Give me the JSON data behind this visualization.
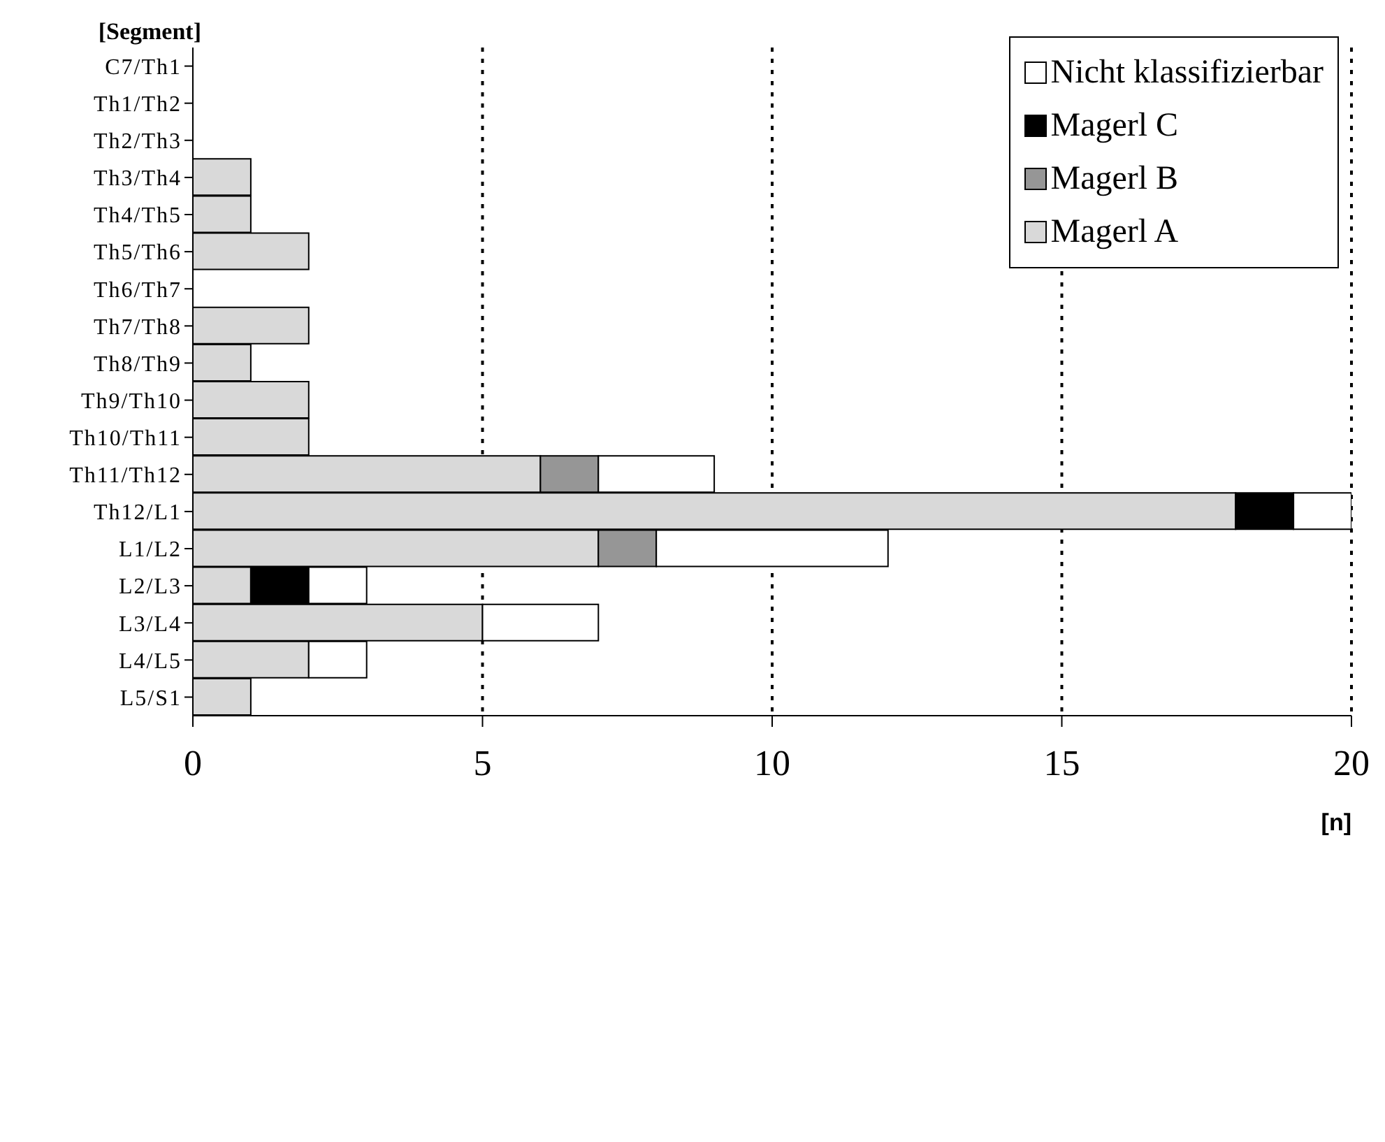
{
  "chart_data": {
    "type": "bar",
    "orientation": "horizontal",
    "stacked": true,
    "xlabel": "[n]",
    "ylabel": "[Segment]",
    "categories": [
      "C7/Th1",
      "Th1/Th2",
      "Th2/Th3",
      "Th3/Th4",
      "Th4/Th5",
      "Th5/Th6",
      "Th6/Th7",
      "Th7/Th8",
      "Th8/Th9",
      "Th9/Th10",
      "Th10/Th11",
      "Th11/Th12",
      "Th12/L1",
      "L1/L2",
      "L2/L3",
      "L3/L4",
      "L4/L5",
      "L5/S1"
    ],
    "series": [
      {
        "name": "Magerl A",
        "color": "#d9d9d9",
        "values": [
          0,
          0,
          0,
          1,
          1,
          2,
          0,
          2,
          1,
          2,
          2,
          6,
          18,
          7,
          1,
          5,
          2,
          1
        ]
      },
      {
        "name": "Magerl B",
        "color": "#969696",
        "values": [
          0,
          0,
          0,
          0,
          0,
          0,
          0,
          0,
          0,
          0,
          0,
          1,
          0,
          1,
          0,
          0,
          0,
          0
        ]
      },
      {
        "name": "Magerl C",
        "color": "#000000",
        "values": [
          0,
          0,
          0,
          0,
          0,
          0,
          0,
          0,
          0,
          0,
          0,
          0,
          1,
          0,
          1,
          0,
          0,
          0
        ]
      },
      {
        "name": "Nicht klassifizierbar",
        "color": "#ffffff",
        "values": [
          0,
          0,
          0,
          0,
          0,
          0,
          0,
          0,
          0,
          0,
          0,
          2,
          1,
          4,
          1,
          2,
          1,
          0
        ]
      }
    ],
    "xlim": [
      0,
      20
    ],
    "xticks": [
      0,
      5,
      10,
      15,
      20
    ],
    "grid": "x",
    "line_style": "dotted",
    "legend": "top right"
  }
}
